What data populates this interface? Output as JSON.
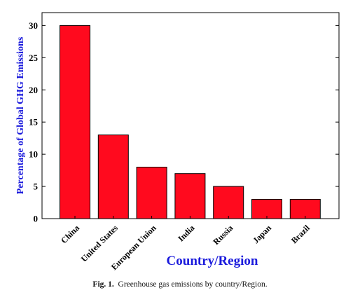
{
  "chart_data": {
    "type": "bar",
    "categories": [
      "China",
      "United States",
      "European Union",
      "India",
      "Russia",
      "Japan",
      "Brazil"
    ],
    "values": [
      30,
      13,
      8,
      7,
      5,
      3,
      3
    ],
    "xlabel": "Country/Region",
    "ylabel": "Percentage of Global GHG Emissions",
    "ylim": [
      0,
      32
    ],
    "yticks": [
      0,
      5,
      10,
      15,
      20,
      25,
      30
    ],
    "grid": false,
    "colors": {
      "bar": "#ff0a1e",
      "label": "#1a1adc"
    }
  },
  "caption": {
    "label": "Fig. 1.",
    "text": "Greenhouse gas emissions by country/Region."
  }
}
